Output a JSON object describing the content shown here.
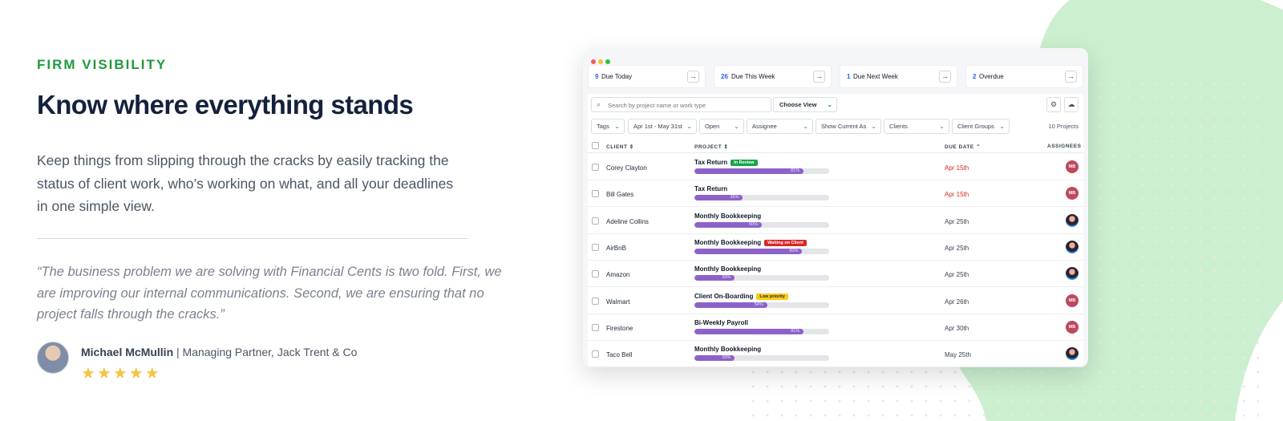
{
  "hero": {
    "eyebrow": "FIRM VISIBILITY",
    "title": "Know where everything stands",
    "body": "Keep things from slipping through the cracks by easily tracking the status of client work, who’s working on what, and all your deadlines in one simple view.",
    "quote": "“The business problem we are solving with Financial Cents is two fold. First, we are improving our internal communications. Second, we are ensuring that no project falls through the cracks.”",
    "author_name": "Michael McMullin",
    "author_title": " | Managing Partner, Jack Trent & Co",
    "stars": "★★★★★",
    "rating": 5
  },
  "colors": {
    "brand_green": "#1f9a3c",
    "blob_green": "#ccefd0",
    "progress_purple": "#8c62c9",
    "overdue_red": "#dc2626",
    "stars_yellow": "#f6c343"
  },
  "app": {
    "summary_cards": [
      {
        "count": "9",
        "label": "Due Today"
      },
      {
        "count": "26",
        "label": "Due This Week"
      },
      {
        "count": "1",
        "label": "Due Next Week"
      },
      {
        "count": "2",
        "label": "Overdue"
      }
    ],
    "search_placeholder": "Search by project name or work type",
    "choose_view": "Choose View",
    "filters": [
      "Tags",
      "Apr 1st - May 31st",
      "Open",
      "Assignee",
      "Show Current As",
      "Clients",
      "Client Groups"
    ],
    "project_count": "10 Projects",
    "columns": {
      "client": "CLIENT",
      "project": "PROJECT",
      "due_date": "DUE DATE",
      "assignees": "ASSIGNEES"
    },
    "rows": [
      {
        "client": "Corey Clayton",
        "project": "Tax Return",
        "badge": "In Review",
        "badge_color": "#16a34a",
        "badge_text_color": "#ffffff",
        "progress": 81,
        "progress_label": "81%",
        "due": "Apr 15th",
        "due_overdue": true,
        "assignee": "MB"
      },
      {
        "client": "Bill Gates",
        "project": "Tax Return",
        "badge": "",
        "progress": 36,
        "progress_label": "36%",
        "due": "Apr 15th",
        "due_overdue": true,
        "assignee": "MB"
      },
      {
        "client": "Adeline Collins",
        "project": "Monthly Bookkeeping",
        "badge": "",
        "progress": 50,
        "progress_label": "50%",
        "due": "Apr 25th",
        "due_overdue": false,
        "assignee": ""
      },
      {
        "client": "AirBnB",
        "project": "Monthly Bookkeeping",
        "badge": "Waiting on Client",
        "badge_color": "#dc2626",
        "badge_text_color": "#ffffff",
        "progress": 80,
        "progress_label": "80%",
        "due": "Apr 25th",
        "due_overdue": false,
        "assignee": ""
      },
      {
        "client": "Amazon",
        "project": "Monthly Bookkeeping",
        "badge": "",
        "progress": 30,
        "progress_label": "30%",
        "due": "Apr 25th",
        "due_overdue": false,
        "assignee": ""
      },
      {
        "client": "Walmart",
        "project": "Client On-Boarding",
        "badge": "Low priority",
        "badge_color": "#facc15",
        "badge_text_color": "#1f2937",
        "progress": 54,
        "progress_label": "54%",
        "due": "Apr 26th",
        "due_overdue": false,
        "assignee": "MB"
      },
      {
        "client": "Firestone",
        "project": "Bi-Weekly Payroll",
        "badge": "",
        "progress": 81,
        "progress_label": "81%",
        "due": "Apr 30th",
        "due_overdue": false,
        "assignee": "MB"
      },
      {
        "client": "Taco Bell",
        "project": "Monthly Bookkeeping",
        "badge": "",
        "progress": 30,
        "progress_label": "30%",
        "due": "May 25th",
        "due_overdue": false,
        "assignee": ""
      }
    ]
  }
}
